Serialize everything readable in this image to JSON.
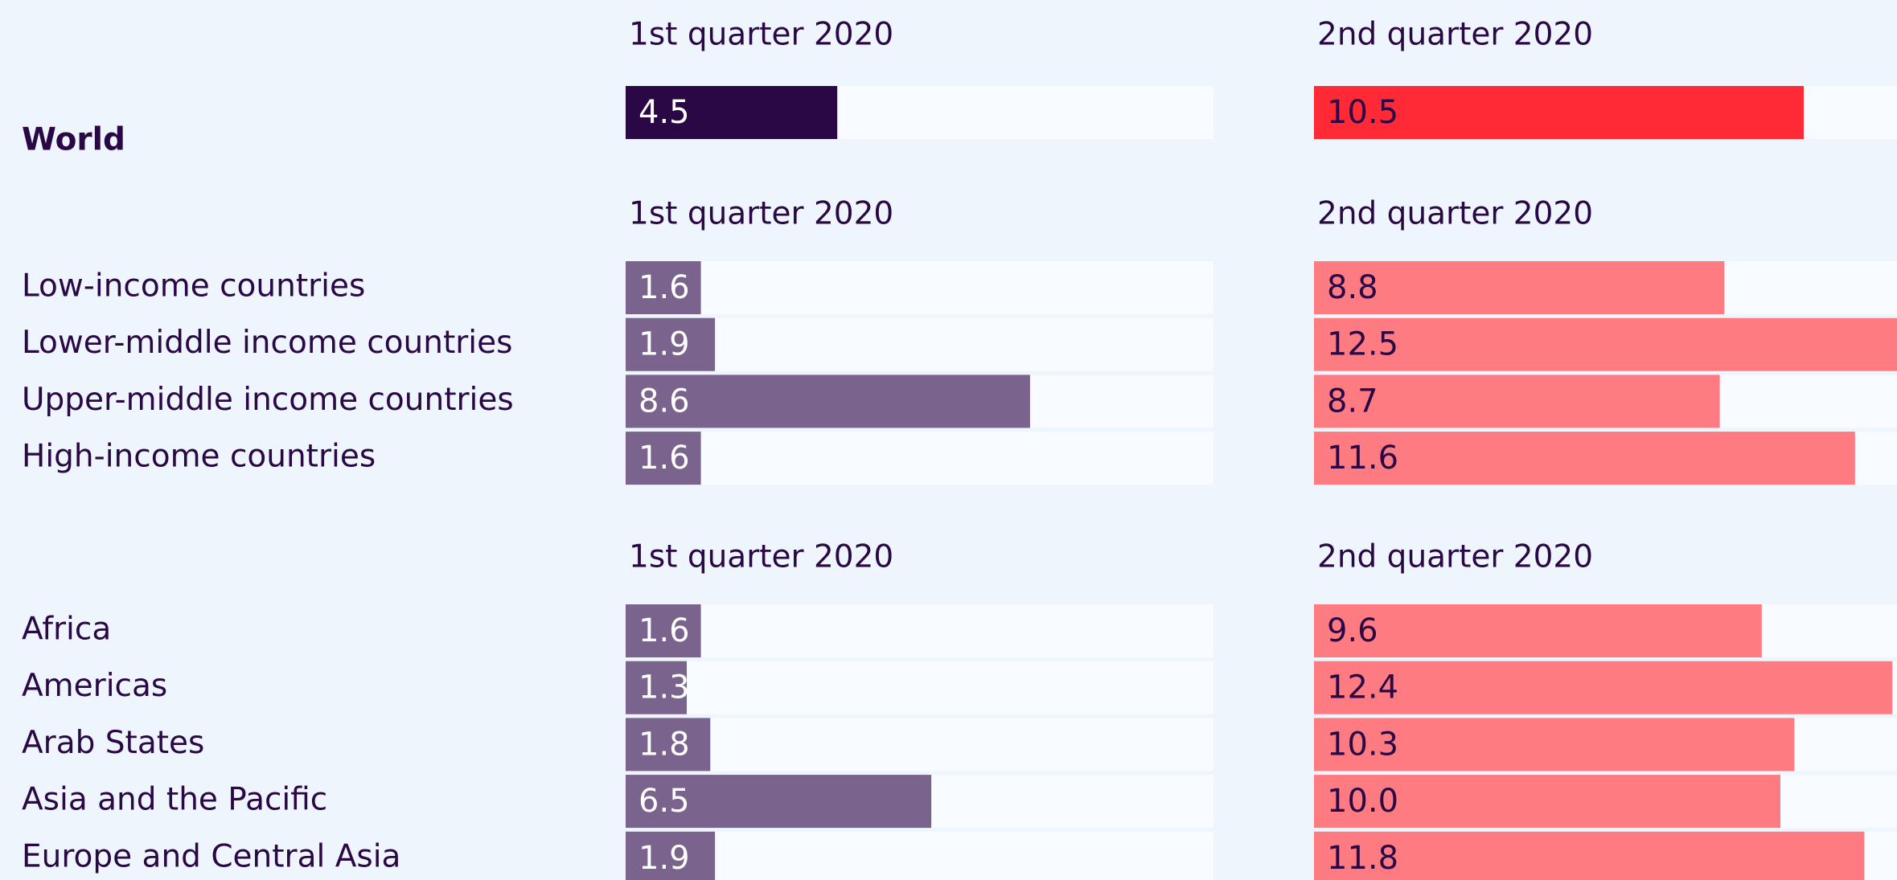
{
  "chart_data": {
    "type": "bar",
    "xlim": [
      0,
      12.5
    ],
    "groups": [
      {
        "categories": [
          "World"
        ],
        "series": [
          {
            "name": "1st quarter 2020",
            "color": "#2a0845",
            "values": [
              4.5
            ]
          },
          {
            "name": "2nd quarter 2020",
            "color": "#ff2a36",
            "values": [
              10.5
            ]
          }
        ]
      },
      {
        "categories": [
          "Low-income countries",
          "Lower-middle income countries",
          "Upper-middle income countries",
          "High-income countries"
        ],
        "series": [
          {
            "name": "1st quarter 2020",
            "color": "#7a638c",
            "values": [
              1.6,
              1.9,
              8.6,
              1.6
            ]
          },
          {
            "name": "2nd quarter 2020",
            "color": "#ff7b82",
            "values": [
              8.8,
              12.5,
              8.7,
              11.6
            ]
          }
        ]
      },
      {
        "categories": [
          "Africa",
          "Americas",
          "Arab States",
          "Asia and the Pacific",
          "Europe and Central Asia"
        ],
        "series": [
          {
            "name": "1st quarter 2020",
            "color": "#7a638c",
            "values": [
              1.6,
              1.3,
              1.8,
              6.5,
              1.9
            ]
          },
          {
            "name": "2nd quarter 2020",
            "color": "#ff7b82",
            "values": [
              9.6,
              12.4,
              10.3,
              10,
              11.8
            ],
            "value_labels": [
              "9.6",
              "12.4",
              "10.3",
              "10.0",
              "11.8"
            ]
          }
        ]
      }
    ]
  }
}
